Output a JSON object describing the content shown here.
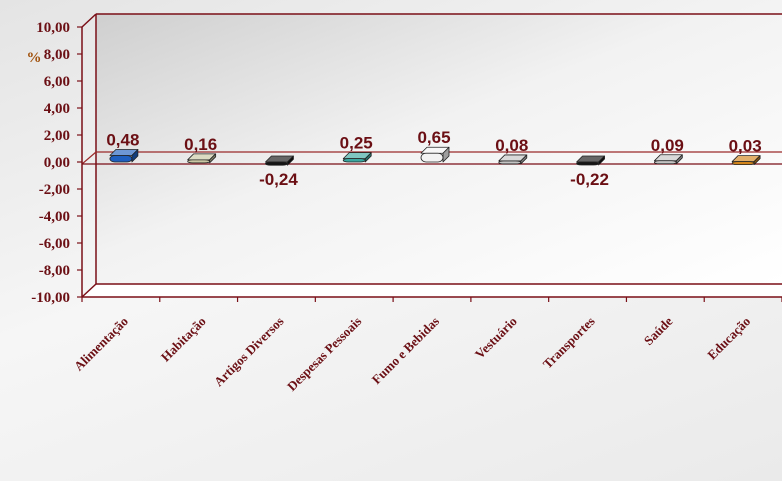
{
  "chart_data": {
    "type": "bar",
    "title": "",
    "ylabel": "%",
    "xlabel": "",
    "ylim": [
      -10,
      10
    ],
    "yticks": [
      10,
      8,
      6,
      4,
      2,
      0,
      -2,
      -4,
      -6,
      -8,
      -10
    ],
    "ytick_labels": [
      "10,00",
      "8,00",
      "6,00",
      "4,00",
      "2,00",
      "0,00",
      "-2,00",
      "-4,00",
      "-6,00",
      "-8,00",
      "-10,00"
    ],
    "categories": [
      "Alimentação",
      "Habitação",
      "Artigos Diversos",
      "Despesas Pessoais",
      "Fumo e Bebidas",
      "Vestuário",
      "Transportes",
      "Saúde",
      "Educação"
    ],
    "values": [
      0.48,
      0.16,
      -0.24,
      0.25,
      0.65,
      0.08,
      -0.22,
      0.09,
      0.03
    ],
    "value_labels": [
      "0,48",
      "0,16",
      "-0,24",
      "0,25",
      "0,65",
      "0,08",
      "-0,22",
      "0,09",
      "0,03"
    ],
    "colors": [
      "#1f5fbf",
      "#c9c7a3",
      "#141414",
      "#3aa7a0",
      "#f3f3f3",
      "#c4c4c4",
      "#141414",
      "#c4c4c4",
      "#d2841a"
    ],
    "legend": "none",
    "grid": false
  }
}
